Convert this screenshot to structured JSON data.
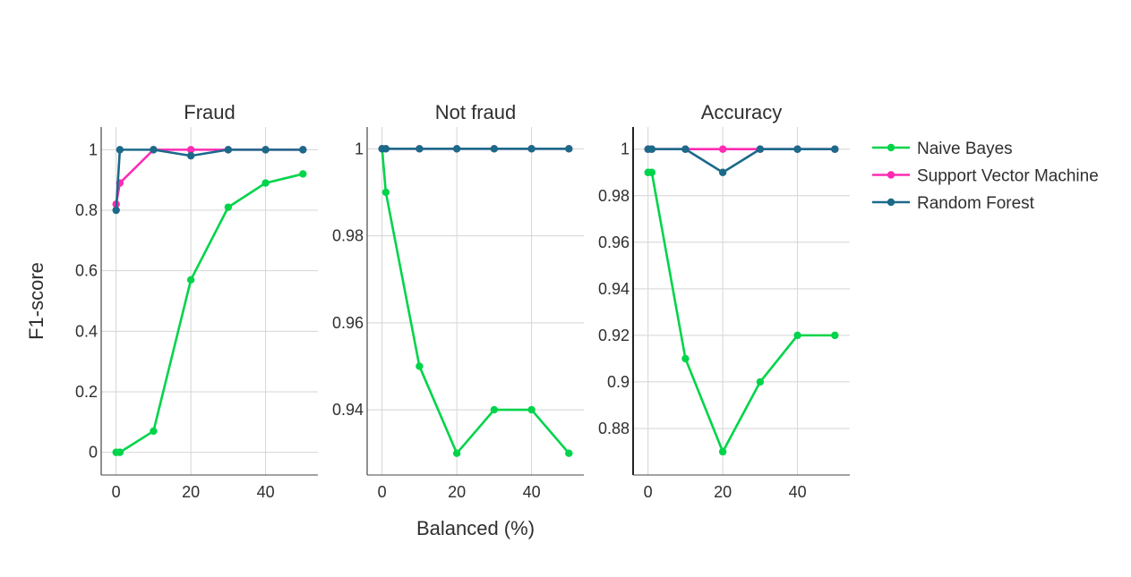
{
  "chart_data": [
    {
      "type": "line",
      "title": "Fraud",
      "xlabel": "",
      "ylabel": "F1-score",
      "xlim": [
        -4,
        54
      ],
      "ylim": [
        -0.075,
        1.075
      ],
      "xticks": [
        0,
        20,
        40
      ],
      "yticks": [
        0,
        0.2,
        0.4,
        0.6,
        0.8,
        1
      ],
      "ytick_labels": [
        "0",
        "0.2",
        "0.4",
        "0.6",
        "0.8",
        "1"
      ],
      "grid": true,
      "series": [
        {
          "name": "Naive Bayes",
          "x": [
            0,
            1,
            10,
            20,
            30,
            40,
            50
          ],
          "values": [
            0.0,
            0.0,
            0.07,
            0.57,
            0.81,
            0.89,
            0.92
          ]
        },
        {
          "name": "Support Vector Machine",
          "x": [
            0,
            1,
            10,
            20,
            30,
            40,
            50
          ],
          "values": [
            0.82,
            0.89,
            1.0,
            1.0,
            1.0,
            1.0,
            1.0
          ]
        },
        {
          "name": "Random Forest",
          "x": [
            0,
            1,
            10,
            20,
            30,
            40,
            50
          ],
          "values": [
            0.8,
            1.0,
            1.0,
            0.98,
            1.0,
            1.0,
            1.0
          ]
        }
      ]
    },
    {
      "type": "line",
      "title": "Not fraud",
      "xlabel": "Balanced (%)",
      "ylabel": "",
      "xlim": [
        -4,
        54
      ],
      "ylim": [
        0.925,
        1.005
      ],
      "xticks": [
        0,
        20,
        40
      ],
      "yticks": [
        0.94,
        0.96,
        0.98,
        1
      ],
      "ytick_labels": [
        "0.94",
        "0.96",
        "0.98",
        "1"
      ],
      "grid": true,
      "series": [
        {
          "name": "Naive Bayes",
          "x": [
            0,
            1,
            10,
            20,
            30,
            40,
            50
          ],
          "values": [
            1.0,
            0.99,
            0.95,
            0.93,
            0.94,
            0.94,
            0.93
          ]
        },
        {
          "name": "Support Vector Machine",
          "x": [
            0,
            1,
            10,
            20,
            30,
            40,
            50
          ],
          "values": [
            1.0,
            1.0,
            1.0,
            1.0,
            1.0,
            1.0,
            1.0
          ]
        },
        {
          "name": "Random Forest",
          "x": [
            0,
            1,
            10,
            20,
            30,
            40,
            50
          ],
          "values": [
            1.0,
            1.0,
            1.0,
            1.0,
            1.0,
            1.0,
            1.0
          ]
        }
      ]
    },
    {
      "type": "line",
      "title": "Accuracy",
      "xlabel": "",
      "ylabel": "",
      "xlim": [
        -4,
        54
      ],
      "ylim": [
        0.86,
        1.0095
      ],
      "xticks": [
        0,
        20,
        40
      ],
      "yticks": [
        0.88,
        0.9,
        0.92,
        0.94,
        0.96,
        0.98,
        1
      ],
      "ytick_labels": [
        "0.88",
        "0.9",
        "0.92",
        "0.94",
        "0.96",
        "0.98",
        "1"
      ],
      "grid": true,
      "series": [
        {
          "name": "Naive Bayes",
          "x": [
            0,
            1,
            10,
            20,
            30,
            40,
            50
          ],
          "values": [
            0.99,
            0.99,
            0.91,
            0.87,
            0.9,
            0.92,
            0.92
          ]
        },
        {
          "name": "Support Vector Machine",
          "x": [
            0,
            1,
            10,
            20,
            30,
            40,
            50
          ],
          "values": [
            1.0,
            1.0,
            1.0,
            1.0,
            1.0,
            1.0,
            1.0
          ]
        },
        {
          "name": "Random Forest",
          "x": [
            0,
            1,
            10,
            20,
            30,
            40,
            50
          ],
          "values": [
            1.0,
            1.0,
            1.0,
            0.99,
            1.0,
            1.0,
            1.0
          ]
        }
      ]
    }
  ],
  "legend": {
    "placement": "top-right",
    "items": [
      {
        "name": "Naive Bayes",
        "color": "#00d44a"
      },
      {
        "name": "Support Vector Machine",
        "color": "#ff2bb3"
      },
      {
        "name": "Random Forest",
        "color": "#1c6a8a"
      }
    ]
  }
}
